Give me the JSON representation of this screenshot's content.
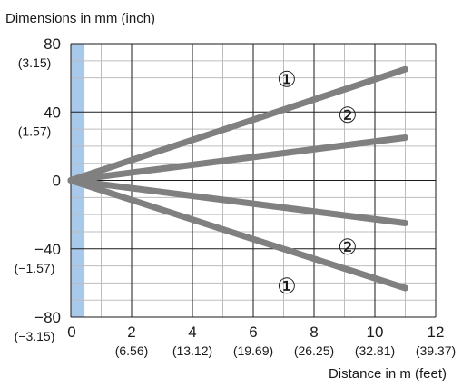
{
  "chart_data": {
    "type": "line",
    "ylabel": "Dimensions in mm (inch)",
    "xlabel": "Distance in m (feet)",
    "xlim": [
      0,
      12
    ],
    "ylim": [
      -80,
      80
    ],
    "grid": true,
    "x_ticks": [
      {
        "value": 0,
        "label": "0",
        "sublabel": ""
      },
      {
        "value": 2,
        "label": "2",
        "sublabel": "(6.56)"
      },
      {
        "value": 4,
        "label": "4",
        "sublabel": "(13.12)"
      },
      {
        "value": 6,
        "label": "6",
        "sublabel": "(19.69)"
      },
      {
        "value": 8,
        "label": "8",
        "sublabel": "(26.25)"
      },
      {
        "value": 10,
        "label": "10",
        "sublabel": "(32.81)"
      },
      {
        "value": 12,
        "label": "12",
        "sublabel": "(39.37)"
      }
    ],
    "y_ticks": [
      {
        "value": 80,
        "label": "80",
        "sublabel": "(3.15)"
      },
      {
        "value": 40,
        "label": "40",
        "sublabel": "(1.57)"
      },
      {
        "value": 0,
        "label": "0",
        "sublabel": ""
      },
      {
        "value": -40,
        "label": "−40",
        "sublabel": "(−1.57)"
      },
      {
        "value": -80,
        "label": "−80",
        "sublabel": "(−3.15)"
      }
    ],
    "shaded_band": {
      "x_from": 0,
      "x_to": 0.45,
      "color": "#a9c9ea"
    },
    "line_color": "#808080",
    "series": [
      {
        "name": "①",
        "x": [
          0,
          11
        ],
        "y": [
          0,
          65
        ]
      },
      {
        "name": "②",
        "x": [
          0,
          11
        ],
        "y": [
          0,
          25
        ]
      },
      {
        "name": "②",
        "x": [
          0,
          11
        ],
        "y": [
          0,
          -25
        ]
      },
      {
        "name": "①",
        "x": [
          0,
          11
        ],
        "y": [
          0,
          -63
        ]
      }
    ],
    "annotations": [
      {
        "text": "①",
        "x": 7.1,
        "y": 59
      },
      {
        "text": "②",
        "x": 9.1,
        "y": 38
      },
      {
        "text": "②",
        "x": 9.1,
        "y": -39
      },
      {
        "text": "①",
        "x": 7.1,
        "y": -62
      }
    ]
  }
}
